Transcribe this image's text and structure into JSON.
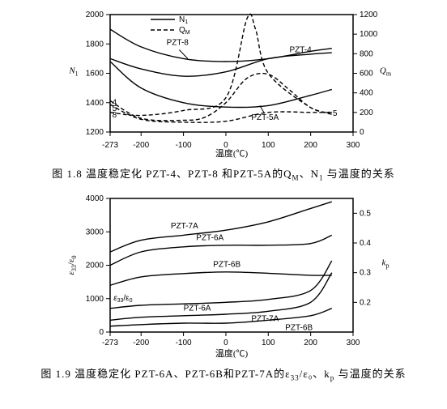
{
  "fig1": {
    "caption_prefix": "图 1.8 温度稳定化 PZT-4、PZT-8 和PZT-5A的Q",
    "caption_sub1": "M",
    "caption_mid": "、N",
    "caption_sub2": "1",
    "caption_suffix": " 与温度的关系",
    "xlabel": "温度(℃)",
    "left_ylabel": "N",
    "left_ylabel_sub": "1",
    "right_ylabel": "Q",
    "right_ylabel_sub": "m",
    "legend_n": "N",
    "legend_n_sub": "1",
    "legend_q": "Q",
    "legend_q_sub": "M",
    "x_ticks": [
      -273,
      -200,
      -100,
      0,
      100,
      200,
      300
    ],
    "y_left_ticks": [
      1200,
      1400,
      1600,
      1800,
      2000
    ],
    "y_right_ticks": [
      0,
      200,
      400,
      600,
      800,
      1000,
      1200
    ],
    "solid": {
      "pzt8": [
        [
          -273,
          1900
        ],
        [
          -200,
          1780
        ],
        [
          -100,
          1700
        ],
        [
          0,
          1680
        ],
        [
          100,
          1700
        ],
        [
          200,
          1750
        ],
        [
          250,
          1770
        ]
      ],
      "pzt4": [
        [
          -273,
          1700
        ],
        [
          -200,
          1630
        ],
        [
          -100,
          1580
        ],
        [
          0,
          1610
        ],
        [
          100,
          1700
        ],
        [
          200,
          1730
        ],
        [
          250,
          1740
        ]
      ],
      "pzt5a": [
        [
          -273,
          1680
        ],
        [
          -200,
          1500
        ],
        [
          -100,
          1400
        ],
        [
          0,
          1370
        ],
        [
          100,
          1380
        ],
        [
          200,
          1450
        ],
        [
          250,
          1490
        ]
      ]
    },
    "dashed": {
      "q5": [
        [
          -273,
          200
        ],
        [
          -200,
          170
        ],
        [
          -100,
          220
        ],
        [
          0,
          350
        ],
        [
          50,
          1160
        ],
        [
          70,
          1050
        ],
        [
          100,
          600
        ],
        [
          200,
          250
        ],
        [
          250,
          200
        ]
      ],
      "q4": [
        [
          -273,
          320
        ],
        [
          -200,
          140
        ],
        [
          -100,
          120
        ],
        [
          -50,
          150
        ],
        [
          0,
          300
        ],
        [
          50,
          550
        ],
        [
          100,
          590
        ],
        [
          150,
          430
        ],
        [
          200,
          250
        ],
        [
          250,
          180
        ]
      ],
      "q8": [
        [
          -273,
          280
        ],
        [
          -200,
          130
        ],
        [
          -100,
          100
        ],
        [
          0,
          110
        ],
        [
          100,
          200
        ],
        [
          200,
          200
        ],
        [
          250,
          200
        ]
      ]
    },
    "series_labels": {
      "pzt8": "PZT-8",
      "pzt4": "PZT-4",
      "pzt5a": "PZT-5A",
      "num5": "5",
      "num4": "4",
      "num8": "8",
      "tail5": "5"
    }
  },
  "fig2": {
    "caption_prefix": "图 1.9 温度稳定化 PZT-6A、PZT-6B和PZT-7A的ε",
    "caption_sub1": "33",
    "caption_mid": "/ε₀、k",
    "caption_sub2": "p",
    "caption_suffix": " 与温度的关系",
    "xlabel": "温度(℃)",
    "left_ylabel": "ε",
    "left_ylabel_sub": "33",
    "left_ylabel2": "/ε",
    "left_ylabel2_sub": "0",
    "right_ylabel": "k",
    "right_ylabel_sub": "p",
    "in_label": "ε",
    "in_label_sub": "33",
    "in_label2": "/ε",
    "in_label2_sub": "0",
    "x_ticks": [
      -273,
      -200,
      -100,
      0,
      100,
      200,
      300
    ],
    "y_left_ticks": [
      0,
      1000,
      2000,
      3000,
      4000
    ],
    "y_right_ticks": [
      0.2,
      0.3,
      0.4,
      0.5
    ],
    "eps": {
      "pzt7a": [
        [
          -273,
          2400
        ],
        [
          -200,
          2750
        ],
        [
          -100,
          2900
        ],
        [
          0,
          3050
        ],
        [
          100,
          3300
        ],
        [
          200,
          3700
        ],
        [
          250,
          3900
        ]
      ],
      "pzt6a": [
        [
          -273,
          2000
        ],
        [
          -200,
          2400
        ],
        [
          -100,
          2550
        ],
        [
          0,
          2600
        ],
        [
          100,
          2600
        ],
        [
          200,
          2650
        ],
        [
          250,
          2900
        ]
      ],
      "pzt6b": [
        [
          -273,
          1400
        ],
        [
          -200,
          1650
        ],
        [
          -100,
          1750
        ],
        [
          0,
          1800
        ],
        [
          100,
          1760
        ],
        [
          200,
          1700
        ],
        [
          250,
          1700
        ]
      ]
    },
    "kp": {
      "pzt6a": [
        [
          -273,
          0.18
        ],
        [
          -200,
          0.19
        ],
        [
          -100,
          0.195
        ],
        [
          0,
          0.2
        ],
        [
          100,
          0.21
        ],
        [
          200,
          0.24
        ],
        [
          250,
          0.34
        ]
      ],
      "pzt7a": [
        [
          -273,
          0.14
        ],
        [
          -200,
          0.15
        ],
        [
          -100,
          0.155
        ],
        [
          0,
          0.16
        ],
        [
          100,
          0.17
        ],
        [
          200,
          0.2
        ],
        [
          250,
          0.3
        ]
      ],
      "pzt6b": [
        [
          -273,
          0.12
        ],
        [
          -200,
          0.125
        ],
        [
          -100,
          0.13
        ],
        [
          0,
          0.13
        ],
        [
          100,
          0.14
        ],
        [
          200,
          0.155
        ],
        [
          250,
          0.18
        ]
      ]
    },
    "series_labels": {
      "pzt7a": "PZT-7A",
      "pzt6a": "PZT-6A",
      "pzt6b": "PZT-6B"
    }
  }
}
